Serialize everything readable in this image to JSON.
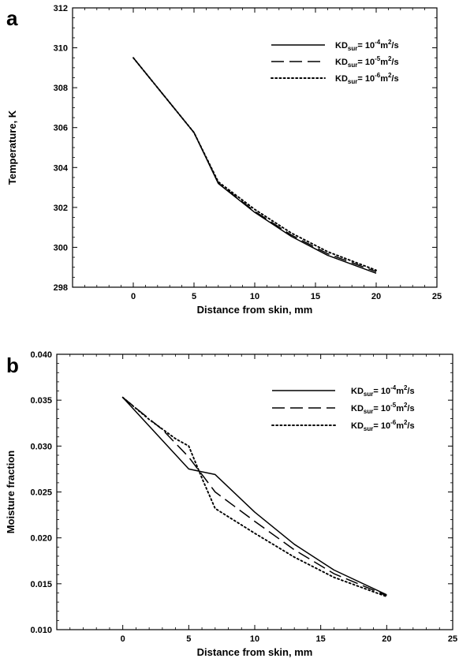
{
  "chart_data": [
    {
      "panel": "a",
      "type": "line",
      "xlabel": "Distance from skin, mm",
      "ylabel": "Temperature, K",
      "xlim": [
        -5,
        25
      ],
      "ylim": [
        298,
        312
      ],
      "xticks": [
        0,
        5,
        10,
        15,
        20,
        25
      ],
      "yticks": [
        298,
        300,
        302,
        304,
        306,
        308,
        310,
        312
      ],
      "ytick_labels": [
        "298",
        "300",
        "302",
        "304",
        "306",
        "308",
        "310",
        "312"
      ],
      "grid": false,
      "legend_position": "top-right",
      "series": [
        {
          "legend": {
            "prefix": "KD",
            "sub": "sur",
            "mid": "= 10",
            "sup": "-4",
            "suffix": "m",
            "sup2": "2",
            "tail": "/s"
          },
          "style": "solid",
          "x": [
            0,
            5,
            7,
            10,
            13,
            16,
            20
          ],
          "y": [
            309.5,
            305.75,
            303.2,
            301.75,
            300.55,
            299.6,
            298.7
          ]
        },
        {
          "legend": {
            "prefix": "KD",
            "sub": "sur",
            "mid": "= 10",
            "sup": "-5",
            "suffix": "m",
            "sup2": "2",
            "tail": "/s"
          },
          "style": "dashed",
          "x": [
            0,
            5,
            7,
            10,
            13,
            16,
            20
          ],
          "y": [
            309.5,
            305.75,
            303.22,
            301.8,
            300.62,
            299.68,
            298.78
          ]
        },
        {
          "legend": {
            "prefix": "KD",
            "sub": "sur",
            "mid": "= 10",
            "sup": "-6",
            "suffix": "m",
            "sup2": "2",
            "tail": "/s"
          },
          "style": "dotted",
          "x": [
            0,
            5,
            7,
            10,
            13,
            16,
            20
          ],
          "y": [
            309.5,
            305.75,
            303.28,
            301.9,
            300.72,
            299.78,
            298.85
          ]
        }
      ]
    },
    {
      "panel": "b",
      "type": "line",
      "xlabel": "Distance from skin, mm",
      "ylabel": "Moisture fraction",
      "xlim": [
        -5,
        25
      ],
      "ylim": [
        0.01,
        0.04
      ],
      "xticks": [
        0,
        5,
        10,
        15,
        20,
        25
      ],
      "yticks": [
        0.01,
        0.015,
        0.02,
        0.025,
        0.03,
        0.035,
        0.04
      ],
      "ytick_labels": [
        "0.010",
        "0.015",
        "0.020",
        "0.025",
        "0.030",
        "0.035",
        "0.040"
      ],
      "grid": false,
      "legend_position": "top-right",
      "series": [
        {
          "legend": {
            "prefix": "KD",
            "sub": "sur",
            "mid": "= 10",
            "sup": "-4",
            "suffix": "m",
            "sup2": "2",
            "tail": "/s"
          },
          "style": "solid",
          "x": [
            0,
            5,
            7,
            10,
            13,
            16,
            20
          ],
          "y": [
            0.0353,
            0.0275,
            0.0269,
            0.0228,
            0.0193,
            0.0165,
            0.0138
          ]
        },
        {
          "legend": {
            "prefix": "KD",
            "sub": "sur",
            "mid": "= 10",
            "sup": "-5",
            "suffix": "m",
            "sup2": "2",
            "tail": "/s"
          },
          "style": "dashed",
          "x": [
            0,
            3,
            5,
            7,
            10,
            13,
            16,
            20
          ],
          "y": [
            0.0353,
            0.0318,
            0.0288,
            0.025,
            0.0218,
            0.0187,
            0.0161,
            0.0137
          ]
        },
        {
          "legend": {
            "prefix": "KD",
            "sub": "sur",
            "mid": "= 10",
            "sup": "-6",
            "suffix": "m",
            "sup2": "2",
            "tail": "/s"
          },
          "style": "dotted",
          "x": [
            0,
            2,
            4,
            5,
            6,
            7,
            10,
            13,
            16,
            20
          ],
          "y": [
            0.0353,
            0.0329,
            0.0308,
            0.03,
            0.0265,
            0.0232,
            0.0205,
            0.0179,
            0.0157,
            0.0136
          ]
        }
      ]
    }
  ]
}
